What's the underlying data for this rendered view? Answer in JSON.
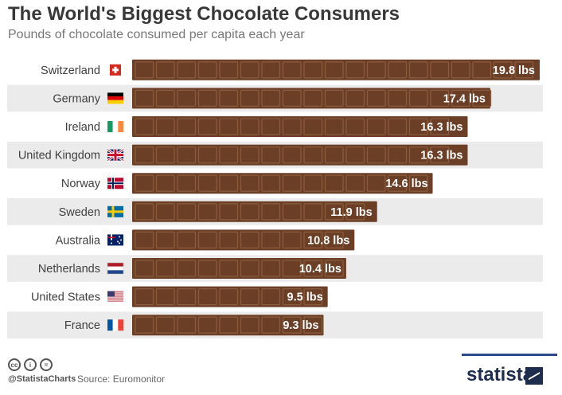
{
  "header": {
    "title": "The World's Biggest Chocolate Consumers",
    "subtitle": "Pounds of chocolate consumed per capita each year"
  },
  "chart_data": {
    "type": "bar",
    "orientation": "horizontal",
    "categories": [
      "Switzerland",
      "Germany",
      "Ireland",
      "United Kingdom",
      "Norway",
      "Sweden",
      "Australia",
      "Netherlands",
      "United States",
      "France"
    ],
    "values": [
      19.8,
      17.4,
      16.3,
      16.3,
      14.6,
      11.9,
      10.8,
      10.4,
      9.5,
      9.3
    ],
    "value_labels": [
      "19.8 lbs",
      "17.4 lbs",
      "16.3 lbs",
      "16.3 lbs",
      "14.6 lbs",
      "11.9 lbs",
      "10.8 lbs",
      "10.4 lbs",
      "9.5 lbs",
      "9.3 lbs"
    ],
    "flags": [
      "switzerland-flag-icon",
      "germany-flag-icon",
      "ireland-flag-icon",
      "united-kingdom-flag-icon",
      "norway-flag-icon",
      "sweden-flag-icon",
      "australia-flag-icon",
      "netherlands-flag-icon",
      "united-states-flag-icon",
      "france-flag-icon"
    ],
    "bar_style": "chocolate-bar",
    "colors": {
      "bar": "#6b3e26",
      "bar_segment": "#8a5a3c",
      "label": "#ffffff",
      "row_band": "#ebebeb"
    },
    "grid": false,
    "legend": false
  },
  "footer": {
    "handle": "@StatistaCharts",
    "source": "Source: Euromonitor",
    "brand": "statista",
    "license_icons": [
      "cc-icon",
      "by-icon",
      "nd-icon"
    ]
  }
}
